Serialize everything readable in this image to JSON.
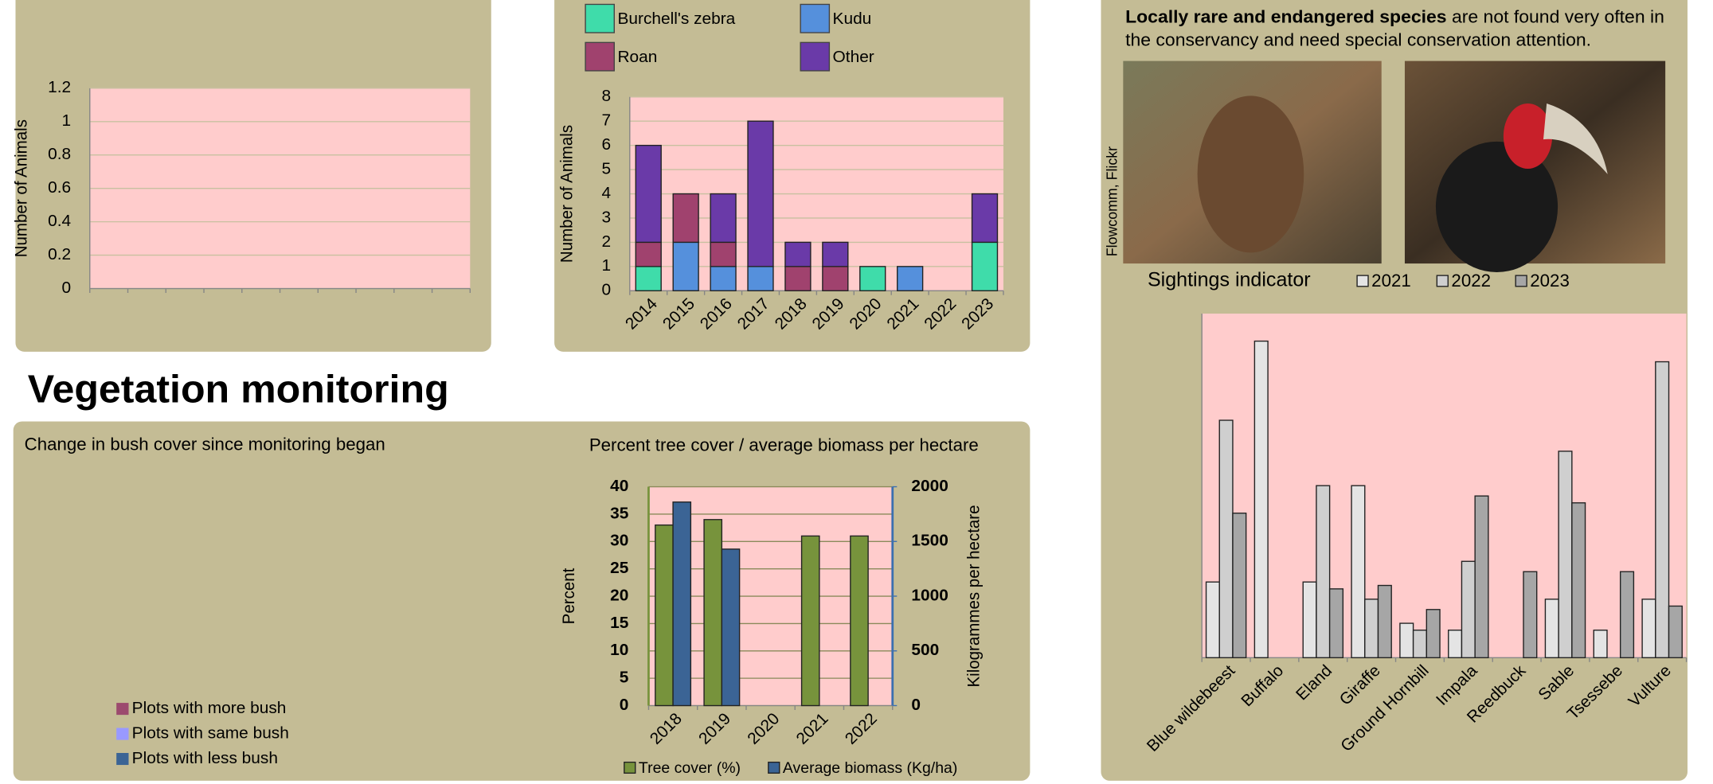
{
  "heading": "Vegetation monitoring",
  "species_note": {
    "bold": "Locally rare and endangered species",
    "text": " are not found very often in the conservancy and need special conservation attention."
  },
  "photo_credit": "Flowcomm, Flickr",
  "chart_data": [
    {
      "type": "bar",
      "ylabel": "Number of Animals",
      "categories": [
        null,
        null,
        null,
        null,
        null,
        null,
        null,
        null,
        null,
        null
      ],
      "series": [],
      "ylim": [
        0,
        1.2
      ],
      "yticks": [
        0,
        0.2,
        0.4,
        0.6,
        0.8,
        1,
        1.2
      ],
      "grid": true
    },
    {
      "type": "bar",
      "stacked": true,
      "ylabel": "Number of Animals",
      "categories": [
        "2014",
        "2015",
        "2016",
        "2017",
        "2018",
        "2019",
        "2020",
        "2021",
        "2022",
        "2023"
      ],
      "series": [
        {
          "name": "Burchell's zebra",
          "color": "#3fdcaa",
          "values": [
            1,
            0,
            0,
            0,
            0,
            0,
            1,
            0,
            0,
            2
          ]
        },
        {
          "name": "Kudu",
          "color": "#5590dc",
          "values": [
            0,
            2,
            1,
            1,
            0,
            0,
            0,
            1,
            0,
            0
          ]
        },
        {
          "name": "Roan",
          "color": "#a0426e",
          "values": [
            1,
            2,
            1,
            0,
            1,
            1,
            0,
            0,
            0,
            0
          ]
        },
        {
          "name": "Other",
          "color": "#6a3aa8",
          "values": [
            4,
            0,
            2,
            6,
            1,
            1,
            0,
            0,
            0,
            2
          ]
        }
      ],
      "ylim": [
        0,
        8
      ],
      "yticks": [
        0,
        1,
        2,
        3,
        4,
        5,
        6,
        7,
        8
      ],
      "grid": true
    },
    {
      "type": "pie",
      "title": "Change in bush cover since monitoring began",
      "series": [
        {
          "name": "Plots with more bush",
          "color": "#9c4a6e"
        },
        {
          "name": "Plots with same bush",
          "color": "#9999ff"
        },
        {
          "name": "Plots with less bush",
          "color": "#3b6495"
        }
      ]
    },
    {
      "type": "bar",
      "title": "Percent tree cover / average biomass per hectare",
      "ylabel": "Percent",
      "y2label": "Kilogrammes per hectare",
      "categories": [
        "2018",
        "2019",
        "2020",
        "2021",
        "2022"
      ],
      "series": [
        {
          "name": "Tree cover (%)",
          "color": "#77933c",
          "values": [
            33,
            34,
            null,
            31,
            31
          ]
        },
        {
          "name": "Average biomass (Kg/ha)",
          "color": "#3b6495",
          "axis": "y2",
          "values": [
            1860,
            1430,
            null,
            null,
            null
          ]
        }
      ],
      "ylim": [
        0,
        40
      ],
      "yticks": [
        0,
        5,
        10,
        15,
        20,
        25,
        30,
        35,
        40
      ],
      "y2lim": [
        0,
        2000
      ],
      "y2ticks": [
        0,
        500,
        1000,
        1500,
        2000
      ],
      "ytick_color": "#77933c",
      "y2tick_color": "#3b6fb0",
      "grid": true
    },
    {
      "type": "bar",
      "title": "Sightings indicator",
      "categories": [
        "Blue wildebeest",
        "Buffalo",
        "Eland",
        "Giraffe",
        "Ground Hornbill",
        "Impala",
        "Reedbuck",
        "Sable",
        "Tsessebe",
        "Vulture"
      ],
      "series": [
        {
          "name": "2021",
          "color": "#e4e4e4",
          "values": [
            22,
            92,
            22,
            50,
            10,
            8,
            0,
            17,
            8,
            17
          ]
        },
        {
          "name": "2022",
          "color": "#cfcfcf",
          "values": [
            69,
            0,
            50,
            17,
            8,
            28,
            0,
            60,
            0,
            86
          ]
        },
        {
          "name": "2023",
          "color": "#a6a6a6",
          "values": [
            42,
            0,
            20,
            21,
            14,
            47,
            25,
            45,
            25,
            15
          ]
        }
      ],
      "ylim": [
        0,
        100
      ]
    }
  ]
}
